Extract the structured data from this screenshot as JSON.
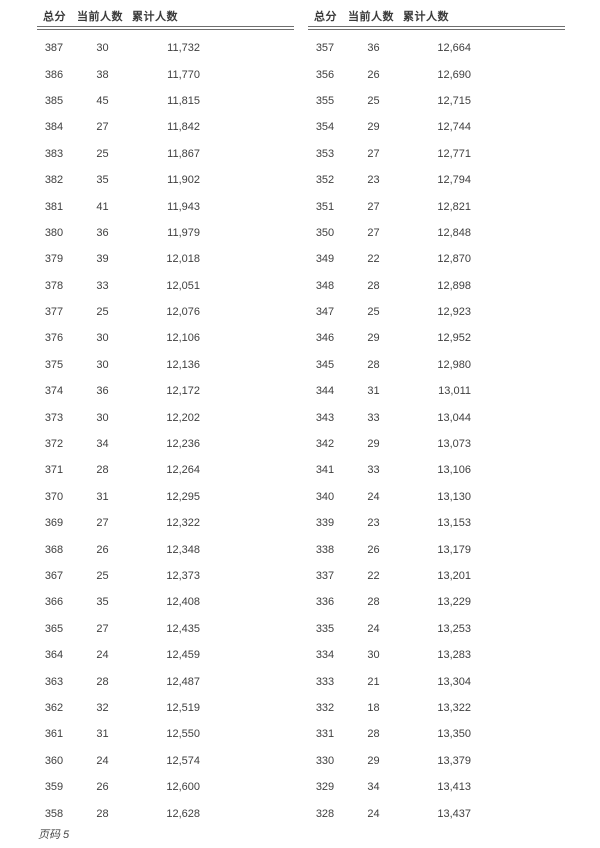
{
  "page": {
    "footer": "页码 5",
    "background_color": "#ffffff",
    "text_color": "#3f3f3f",
    "rule_color": "#6f6f6f"
  },
  "table": {
    "columns": [
      "总分",
      "当前人数",
      "累计人数"
    ],
    "left_rows": [
      [
        387,
        30,
        "11,732"
      ],
      [
        386,
        38,
        "11,770"
      ],
      [
        385,
        45,
        "11,815"
      ],
      [
        384,
        27,
        "11,842"
      ],
      [
        383,
        25,
        "11,867"
      ],
      [
        382,
        35,
        "11,902"
      ],
      [
        381,
        41,
        "11,943"
      ],
      [
        380,
        36,
        "11,979"
      ],
      [
        379,
        39,
        "12,018"
      ],
      [
        378,
        33,
        "12,051"
      ],
      [
        377,
        25,
        "12,076"
      ],
      [
        376,
        30,
        "12,106"
      ],
      [
        375,
        30,
        "12,136"
      ],
      [
        374,
        36,
        "12,172"
      ],
      [
        373,
        30,
        "12,202"
      ],
      [
        372,
        34,
        "12,236"
      ],
      [
        371,
        28,
        "12,264"
      ],
      [
        370,
        31,
        "12,295"
      ],
      [
        369,
        27,
        "12,322"
      ],
      [
        368,
        26,
        "12,348"
      ],
      [
        367,
        25,
        "12,373"
      ],
      [
        366,
        35,
        "12,408"
      ],
      [
        365,
        27,
        "12,435"
      ],
      [
        364,
        24,
        "12,459"
      ],
      [
        363,
        28,
        "12,487"
      ],
      [
        362,
        32,
        "12,519"
      ],
      [
        361,
        31,
        "12,550"
      ],
      [
        360,
        24,
        "12,574"
      ],
      [
        359,
        26,
        "12,600"
      ],
      [
        358,
        28,
        "12,628"
      ]
    ],
    "right_rows": [
      [
        357,
        36,
        "12,664"
      ],
      [
        356,
        26,
        "12,690"
      ],
      [
        355,
        25,
        "12,715"
      ],
      [
        354,
        29,
        "12,744"
      ],
      [
        353,
        27,
        "12,771"
      ],
      [
        352,
        23,
        "12,794"
      ],
      [
        351,
        27,
        "12,821"
      ],
      [
        350,
        27,
        "12,848"
      ],
      [
        349,
        22,
        "12,870"
      ],
      [
        348,
        28,
        "12,898"
      ],
      [
        347,
        25,
        "12,923"
      ],
      [
        346,
        29,
        "12,952"
      ],
      [
        345,
        28,
        "12,980"
      ],
      [
        344,
        31,
        "13,011"
      ],
      [
        343,
        33,
        "13,044"
      ],
      [
        342,
        29,
        "13,073"
      ],
      [
        341,
        33,
        "13,106"
      ],
      [
        340,
        24,
        "13,130"
      ],
      [
        339,
        23,
        "13,153"
      ],
      [
        338,
        26,
        "13,179"
      ],
      [
        337,
        22,
        "13,201"
      ],
      [
        336,
        28,
        "13,229"
      ],
      [
        335,
        24,
        "13,253"
      ],
      [
        334,
        30,
        "13,283"
      ],
      [
        333,
        21,
        "13,304"
      ],
      [
        332,
        18,
        "13,322"
      ],
      [
        331,
        28,
        "13,350"
      ],
      [
        330,
        29,
        "13,379"
      ],
      [
        329,
        34,
        "13,413"
      ],
      [
        328,
        24,
        "13,437"
      ]
    ]
  }
}
